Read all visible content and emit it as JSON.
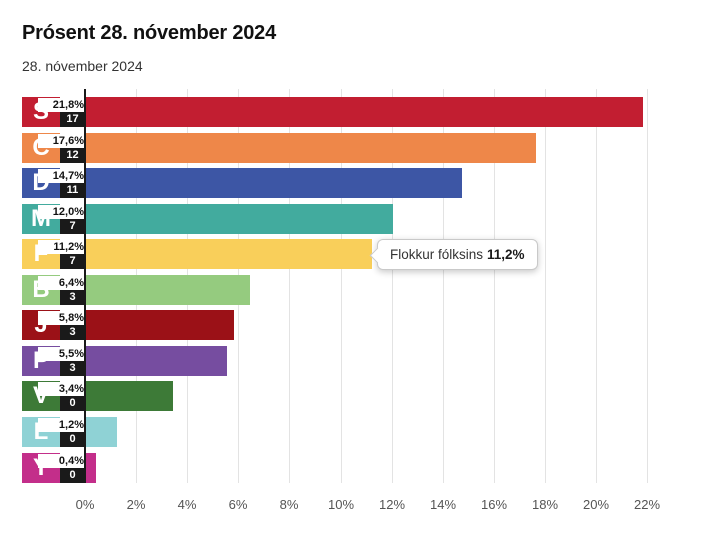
{
  "header": {
    "title": "Prósent 28. nóvember 2024",
    "subtitle": "28. nóvember 2024"
  },
  "chart_data": {
    "type": "bar",
    "orientation": "horizontal",
    "title": "Prósent 28. nóvember 2024",
    "subtitle": "28. nóvember 2024",
    "xlabel": "",
    "ylabel": "",
    "xlim": [
      0,
      22
    ],
    "x_tick_labels": [
      "0%",
      "2%",
      "4%",
      "6%",
      "8%",
      "10%",
      "12%",
      "14%",
      "16%",
      "18%",
      "20%",
      "22%"
    ],
    "grid": true,
    "legend": "none",
    "categories": [
      "S",
      "C",
      "D",
      "M",
      "F",
      "B",
      "J",
      "P",
      "V",
      "L",
      "Y"
    ],
    "series": [
      {
        "name": "percent",
        "values": [
          21.8,
          17.6,
          14.7,
          12.0,
          11.2,
          6.4,
          5.8,
          5.5,
          3.4,
          1.2,
          0.4
        ]
      },
      {
        "name": "seats",
        "values": [
          17,
          12,
          11,
          7,
          7,
          3,
          3,
          3,
          0,
          0,
          0
        ]
      }
    ],
    "bars": [
      {
        "letter": "S",
        "percent": 21.8,
        "percent_label": "21,8%",
        "seats": "17",
        "color": "#c21e31"
      },
      {
        "letter": "C",
        "percent": 17.6,
        "percent_label": "17,6%",
        "seats": "12",
        "color": "#ee8749"
      },
      {
        "letter": "D",
        "percent": 14.7,
        "percent_label": "14,7%",
        "seats": "11",
        "color": "#3d56a5"
      },
      {
        "letter": "M",
        "percent": 12.0,
        "percent_label": "12,0%",
        "seats": "7",
        "color": "#42ab9e"
      },
      {
        "letter": "F",
        "percent": 11.2,
        "percent_label": "11,2%",
        "seats": "7",
        "color": "#f9cf5a"
      },
      {
        "letter": "B",
        "percent": 6.4,
        "percent_label": "6,4%",
        "seats": "3",
        "color": "#95cb7f"
      },
      {
        "letter": "J",
        "percent": 5.8,
        "percent_label": "5,8%",
        "seats": "3",
        "color": "#9b1117"
      },
      {
        "letter": "P",
        "percent": 5.5,
        "percent_label": "5,5%",
        "seats": "3",
        "color": "#764da0"
      },
      {
        "letter": "V",
        "percent": 3.4,
        "percent_label": "3,4%",
        "seats": "0",
        "color": "#3d7a37"
      },
      {
        "letter": "L",
        "percent": 1.2,
        "percent_label": "1,2%",
        "seats": "0",
        "color": "#8fd2d5"
      },
      {
        "letter": "Y",
        "percent": 0.4,
        "percent_label": "0,4%",
        "seats": "0",
        "color": "#c32e8a"
      }
    ],
    "tooltip": {
      "party": "Flokkur fólksins",
      "value": "11,2%",
      "attached_to": "F"
    },
    "colors": {
      "axis": "#1a1a1a",
      "gridline": "#e3e3e3",
      "seat_box": "#1a1a1a",
      "tick_label": "#555555"
    }
  }
}
